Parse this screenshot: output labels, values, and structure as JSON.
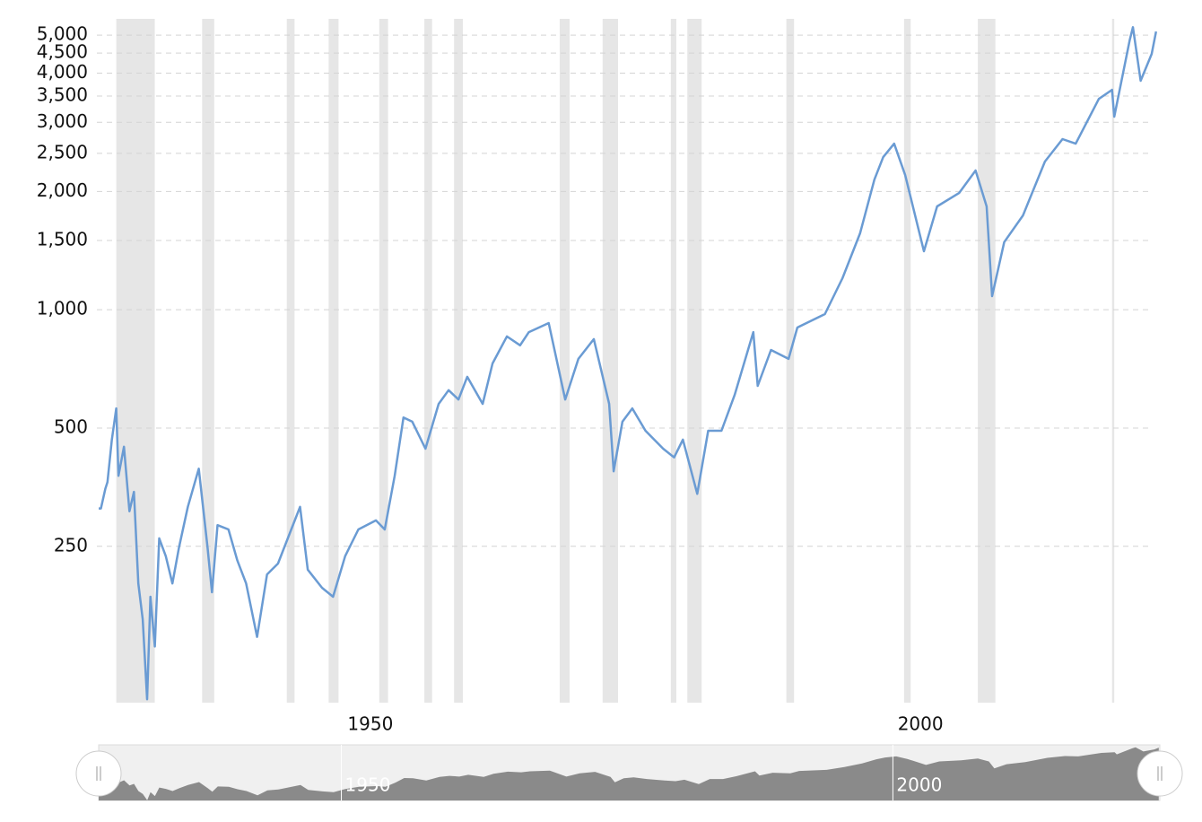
{
  "chart_data": {
    "type": "line",
    "x": [
      1928.0,
      1928.2,
      1928.6,
      1928.8,
      1929.2,
      1929.6,
      1929.8,
      1930.3,
      1930.8,
      1931.2,
      1931.6,
      1932.0,
      1932.4,
      1932.7,
      1933.1,
      1933.5,
      1934.1,
      1934.7,
      1935.3,
      1936.1,
      1937.1,
      1937.9,
      1938.3,
      1938.8,
      1939.8,
      1940.6,
      1941.4,
      1942.4,
      1943.3,
      1944.3,
      1945.5,
      1946.3,
      1947.0,
      1948.3,
      1949.3,
      1950.4,
      1951.6,
      1953.2,
      1954.0,
      1954.9,
      1955.7,
      1956.5,
      1957.7,
      1958.9,
      1959.8,
      1960.7,
      1961.5,
      1962.9,
      1963.8,
      1965.1,
      1966.3,
      1967.1,
      1968.9,
      1970.4,
      1971.6,
      1973.0,
      1974.4,
      1974.8,
      1975.6,
      1976.5,
      1977.7,
      1979.3,
      1980.3,
      1981.1,
      1982.4,
      1983.4,
      1984.6,
      1985.8,
      1987.5,
      1987.9,
      1989.1,
      1990.7,
      1991.5,
      1994.0,
      1995.6,
      1997.2,
      1998.5,
      1999.3,
      2000.3,
      2001.3,
      2003.0,
      2004.2,
      2006.2,
      2007.7,
      2008.7,
      2009.2,
      2010.3,
      2012.0,
      2014.0,
      2015.6,
      2016.8,
      2018.9,
      2020.1,
      2020.3,
      2021.7,
      2022.0,
      2022.7,
      2023.7,
      2024.1
    ],
    "series": [
      {
        "color": "#6a9bd3",
        "values": [
          312,
          312,
          350,
          364,
          467,
          561,
          378,
          448,
          307,
          344,
          201,
          163,
          102,
          186,
          139,
          262,
          236,
          201,
          248,
          315,
          394,
          248,
          191,
          283,
          276,
          230,
          201,
          147,
          212,
          226,
          276,
          315,
          218,
          196,
          186,
          236,
          276,
          291,
          276,
          378,
          532,
          519,
          443,
          576,
          624,
          591,
          675,
          576,
          730,
          855,
          812,
          877,
          925,
          591,
          750,
          842,
          576,
          388,
          519,
          561,
          492,
          443,
          421,
          467,
          340,
          492,
          492,
          607,
          877,
          640,
          790,
          750,
          901,
          975,
          1203,
          1565,
          2144,
          2446,
          2647,
          2202,
          1409,
          1832,
          1982,
          2261,
          1832,
          1083,
          1486,
          1738,
          2383,
          2719,
          2647,
          3441,
          3629,
          3100,
          4843,
          5238,
          3826,
          4477,
          5106
        ]
      }
    ],
    "recessions": [
      [
        1929.6,
        1933.1
      ],
      [
        1937.4,
        1938.5
      ],
      [
        1945.1,
        1945.8
      ],
      [
        1948.9,
        1949.8
      ],
      [
        1953.5,
        1954.3
      ],
      [
        1957.6,
        1958.3
      ],
      [
        1960.3,
        1961.1
      ],
      [
        1969.9,
        1970.8
      ],
      [
        1973.8,
        1975.2
      ],
      [
        1980.0,
        1980.5
      ],
      [
        1981.5,
        1982.8
      ],
      [
        1990.5,
        1991.2
      ],
      [
        2001.2,
        2001.8
      ],
      [
        2007.9,
        2009.5
      ],
      [
        2020.1,
        2020.3
      ]
    ],
    "recession_color": "#e6e6e6",
    "xlim": [
      1928,
      2024.2
    ],
    "xticks": [
      1950,
      2000
    ],
    "ylim": [
      100,
      5500
    ],
    "log_scale": true,
    "grid": true,
    "yticks": [
      250,
      500,
      {
        "value": 1000,
        "label": "1,000"
      },
      {
        "value": 1500,
        "label": "1,500"
      },
      {
        "value": 2000,
        "label": "2,000"
      },
      {
        "value": 2500,
        "label": "2,500"
      },
      {
        "value": 3000,
        "label": "3,000"
      },
      {
        "value": 3500,
        "label": "3,500"
      },
      {
        "value": 4000,
        "label": "4,000"
      },
      {
        "value": 4500,
        "label": "4,500"
      },
      {
        "value": 5000,
        "label": "5,000"
      }
    ]
  }
}
